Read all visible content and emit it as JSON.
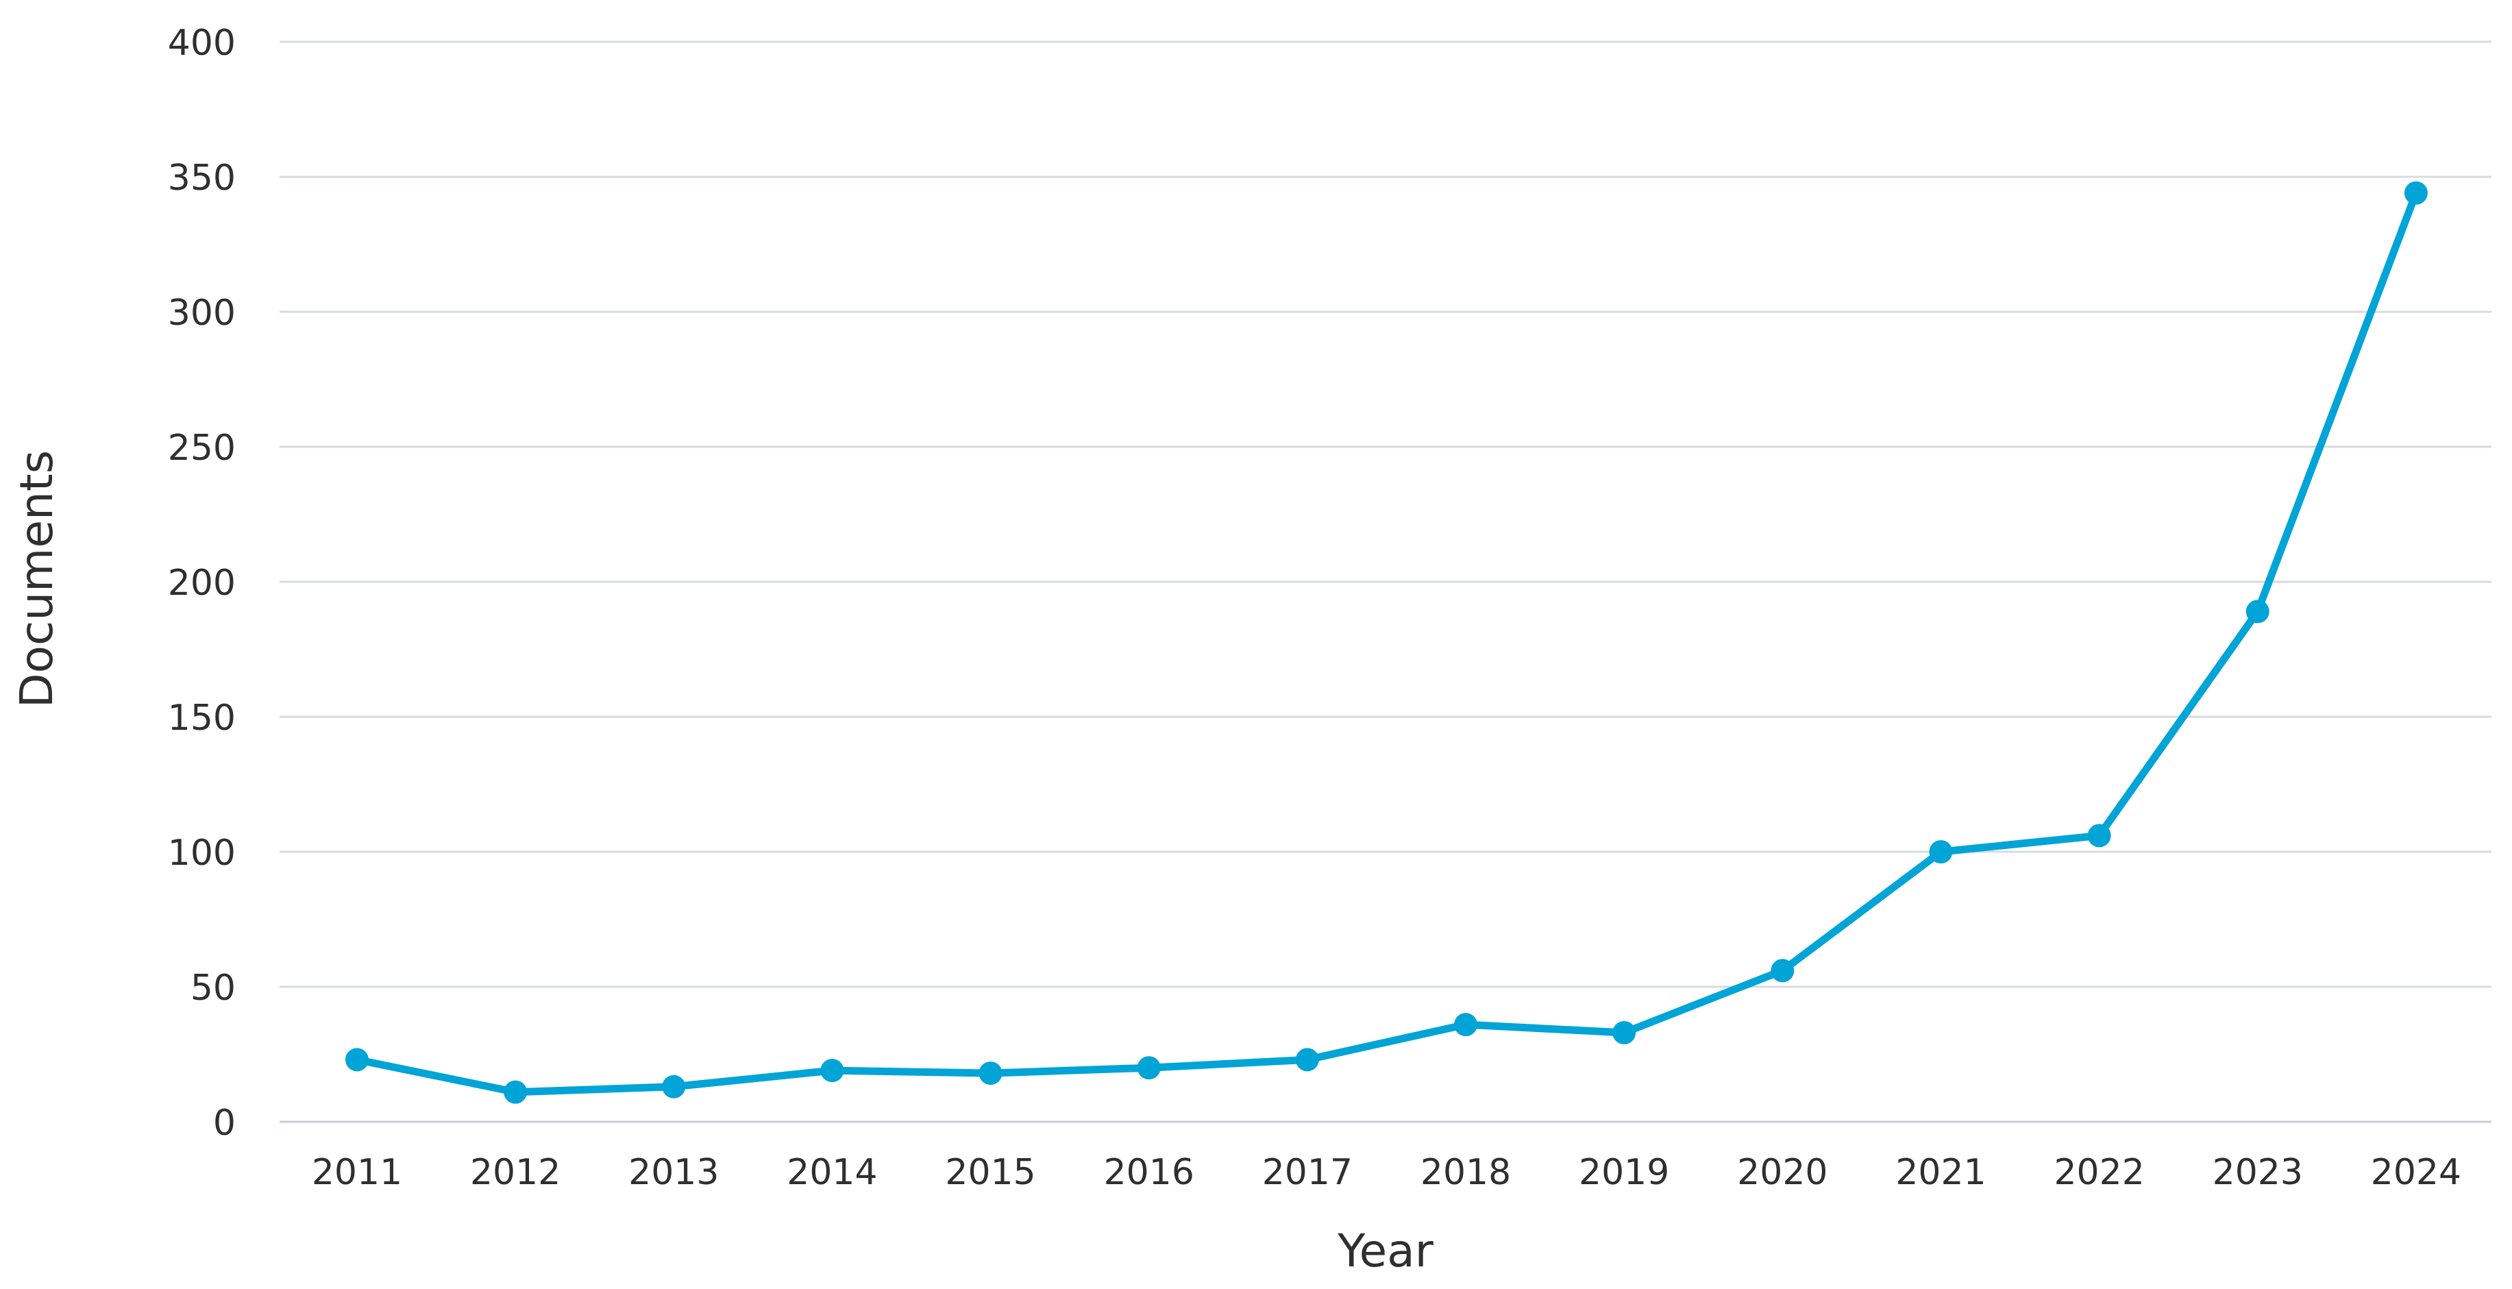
{
  "chart_data": {
    "type": "line",
    "title": "",
    "xlabel": "Year",
    "ylabel": "Documents",
    "categories": [
      "2011",
      "2012",
      "2013",
      "2014",
      "2015",
      "2016",
      "2017",
      "2018",
      "2019",
      "2020",
      "2021",
      "2022",
      "2023",
      "2024"
    ],
    "series": [
      {
        "values": [
          23,
          11,
          13,
          19,
          18,
          20,
          23,
          36,
          33,
          56,
          100,
          106,
          189,
          344
        ]
      }
    ],
    "ylim": [
      0,
      400
    ],
    "yticks": [
      "0",
      "50",
      "100",
      "150",
      "200",
      "250",
      "300",
      "350",
      "400"
    ],
    "grid": "horizontal",
    "line_color": "#00a4d6",
    "grid_color": "#d7dbe0"
  }
}
